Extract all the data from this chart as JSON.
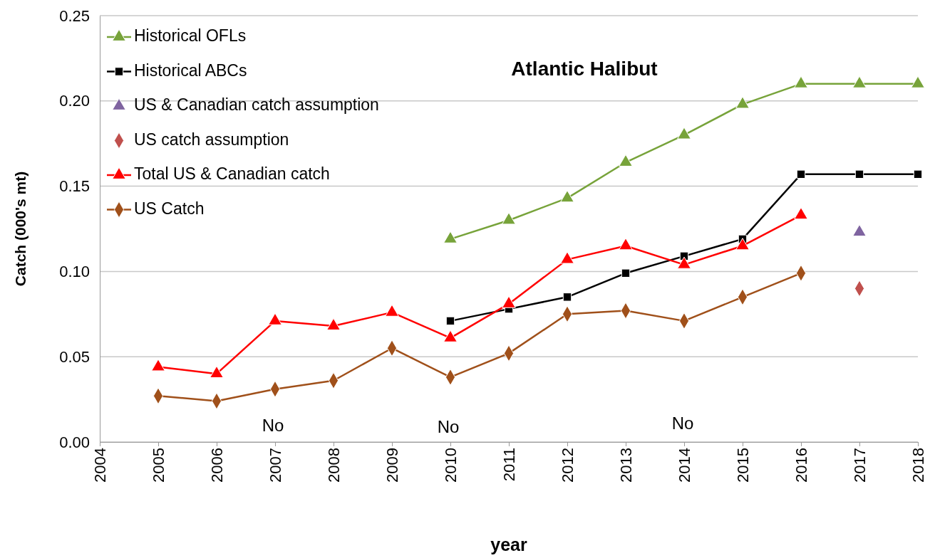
{
  "chart_data": {
    "type": "line",
    "title": "Atlantic Halibut",
    "xlabel": "year",
    "ylabel": "Catch (000's mt)",
    "xlim": [
      2004,
      2018
    ],
    "xticks": [
      2004,
      2005,
      2006,
      2007,
      2008,
      2009,
      2010,
      2011,
      2012,
      2013,
      2014,
      2015,
      2016,
      2017,
      2018
    ],
    "ylim": [
      0,
      0.25
    ],
    "yticks": [
      {
        "value": 0,
        "label": "0.00"
      },
      {
        "value": 0.05,
        "label": "0.05"
      },
      {
        "value": 0.1,
        "label": "0.10"
      },
      {
        "value": 0.15,
        "label": "0.15"
      },
      {
        "value": 0.2,
        "label": "0.20"
      },
      {
        "value": 0.25,
        "label": "0.25"
      }
    ],
    "grid": "y",
    "legend": "top left",
    "series": [
      {
        "name": "Historical OFLs",
        "color": "#77a33a",
        "marker": "triangle",
        "x": [
          2010,
          2011,
          2012,
          2013,
          2014,
          2015,
          2016,
          2017,
          2018
        ],
        "values": [
          0.119,
          0.13,
          0.143,
          0.164,
          0.18,
          0.198,
          0.21,
          0.21,
          0.21
        ]
      },
      {
        "name": "Historical ABCs",
        "color": "#000000",
        "marker": "square",
        "x": [
          2010,
          2011,
          2012,
          2013,
          2014,
          2015,
          2016,
          2017,
          2018
        ],
        "values": [
          0.071,
          0.078,
          0.085,
          0.099,
          0.109,
          0.119,
          0.157,
          0.157,
          0.157
        ]
      },
      {
        "name": "US & Canadian catch assumption",
        "type": "scatter",
        "color": "#7f64a0",
        "marker": "triangle",
        "x": [
          2017
        ],
        "values": [
          0.123
        ]
      },
      {
        "name": "US catch assumption",
        "type": "scatter",
        "color": "#c0504d",
        "marker": "diamond",
        "x": [
          2017
        ],
        "values": [
          0.09
        ]
      },
      {
        "name": "Total US & Canadian catch",
        "color": "#ff0000",
        "marker": "triangle",
        "x": [
          2005,
          2006,
          2007,
          2008,
          2009,
          2010,
          2011,
          2012,
          2013,
          2014,
          2015,
          2016
        ],
        "values": [
          0.044,
          0.04,
          0.071,
          0.068,
          0.076,
          0.061,
          0.081,
          0.107,
          0.115,
          0.104,
          0.115,
          0.133
        ]
      },
      {
        "name": "US Catch",
        "color": "#a0501a",
        "marker": "diamond",
        "x": [
          2005,
          2006,
          2007,
          2008,
          2009,
          2010,
          2011,
          2012,
          2013,
          2014,
          2015,
          2016
        ],
        "values": [
          0.027,
          0.024,
          0.031,
          0.036,
          0.055,
          0.038,
          0.052,
          0.075,
          0.077,
          0.071,
          0.085,
          0.099
        ]
      }
    ],
    "annotations": [
      "No",
      "No",
      "No"
    ]
  }
}
